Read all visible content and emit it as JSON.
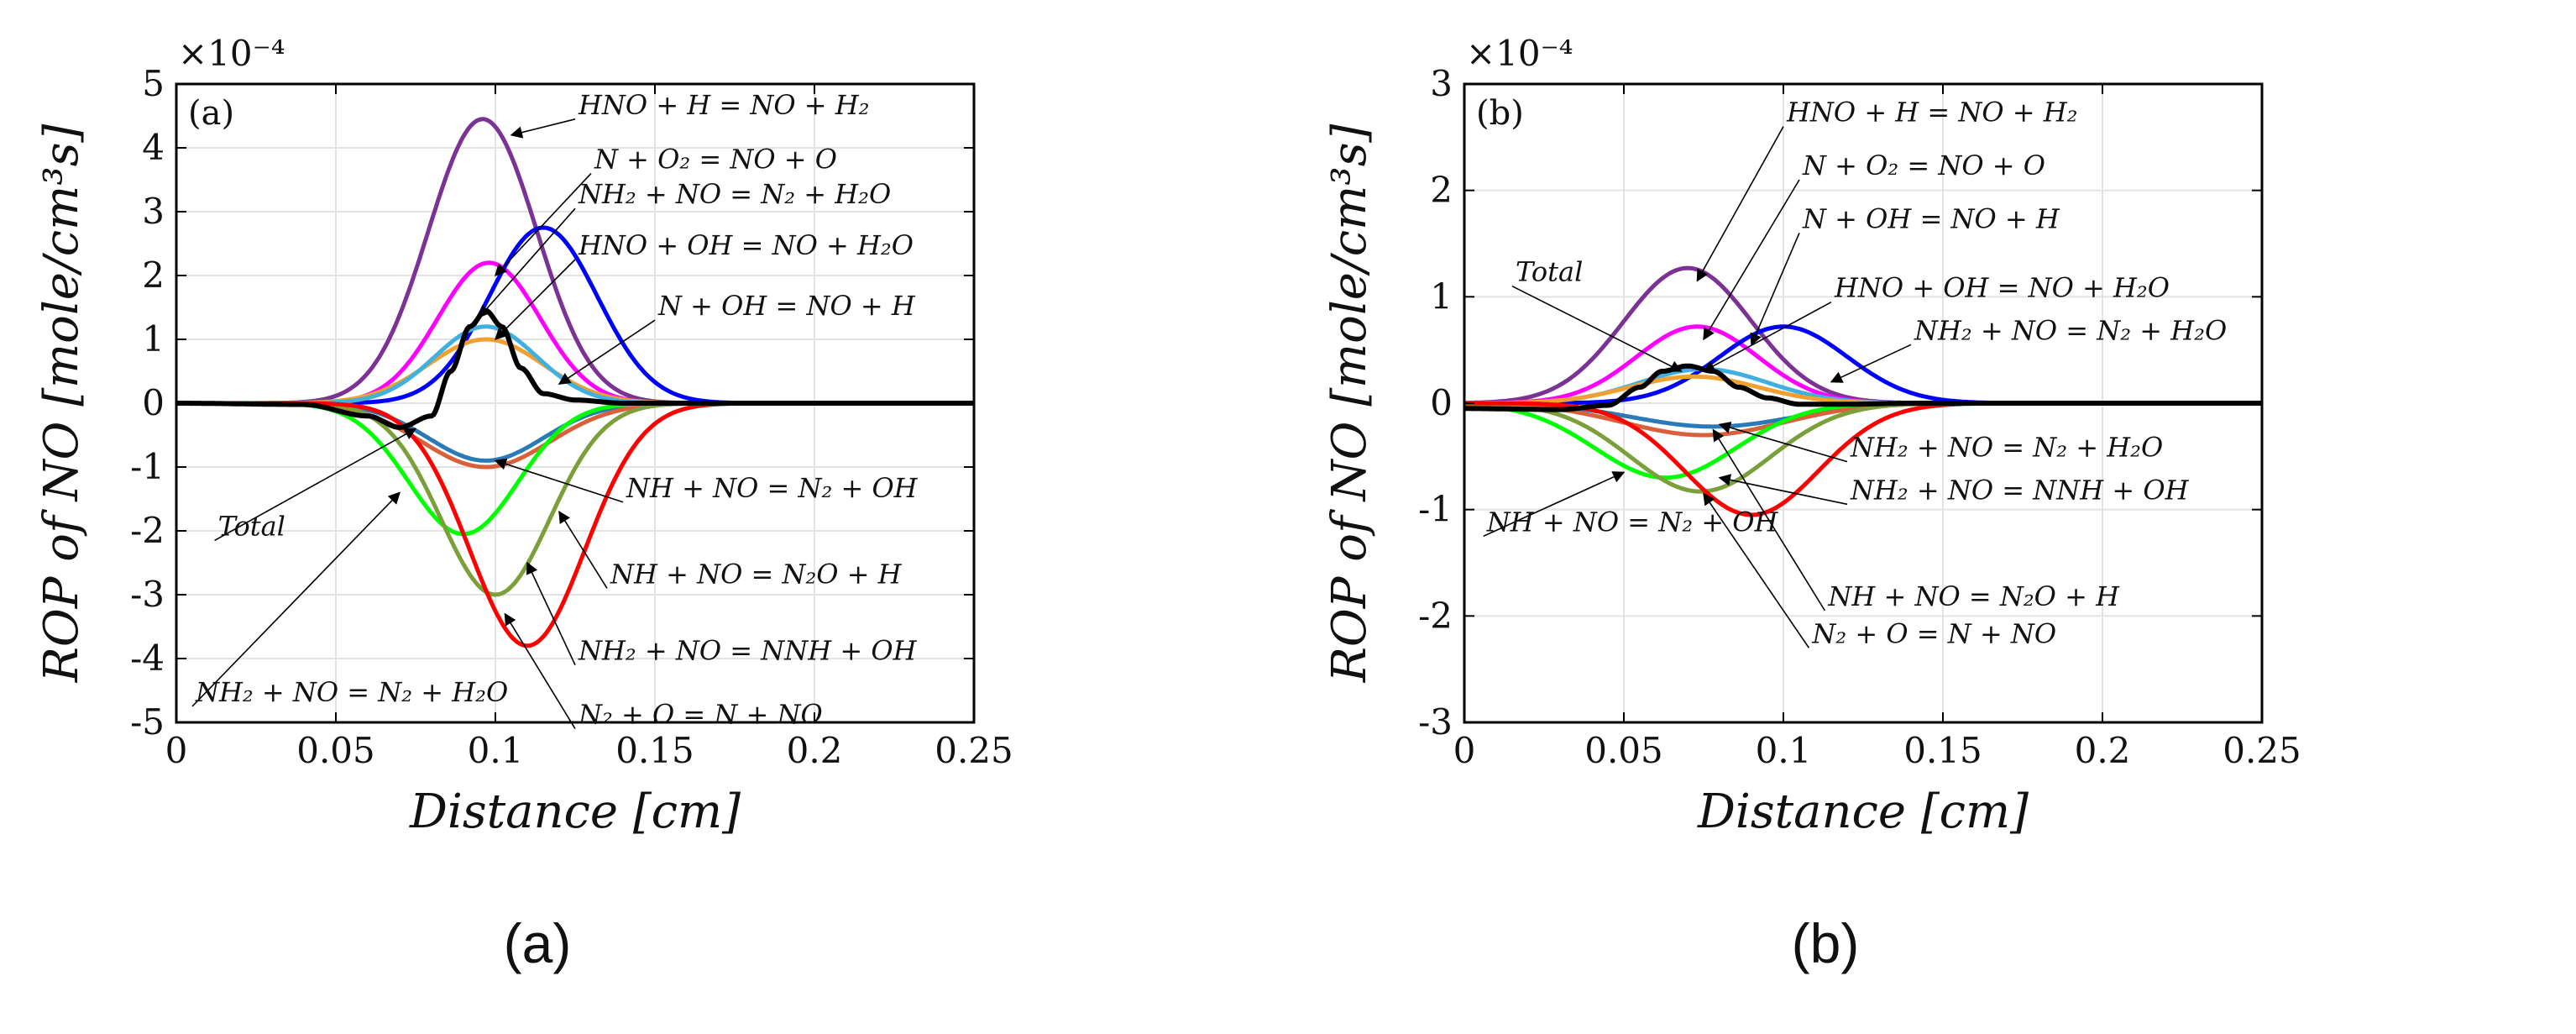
{
  "captions": [
    "(a)",
    "(b)"
  ],
  "chart_data": [
    {
      "type": "line",
      "panel_label": "(a)",
      "xlabel": "Distance [cm]",
      "ylabel": "ROP of NO [mole/cm³s]",
      "y_exponent": "×10⁻⁴",
      "xlim": [
        0,
        0.25
      ],
      "ylim": [
        -5,
        5
      ],
      "xticks": [
        "0",
        "0.05",
        "0.1",
        "0.15",
        "0.2",
        "0.25"
      ],
      "yticks": [
        "5",
        "4",
        "3",
        "2",
        "1",
        "0",
        "-1",
        "-2",
        "-3",
        "-4",
        "-5"
      ],
      "grid": true,
      "series": [
        {
          "color": "#7b3294",
          "peak_x": 0.096,
          "peak_y": 4.45,
          "width": 0.017
        },
        {
          "color": "#ff00ff",
          "peak_x": 0.098,
          "peak_y": 2.2,
          "width": 0.016
        },
        {
          "color": "#0000ff",
          "peak_x": 0.115,
          "peak_y": 2.75,
          "width": 0.017
        },
        {
          "color": "#f0a030",
          "peak_x": 0.097,
          "peak_y": 1.0,
          "width": 0.018
        },
        {
          "color": "#40b0e0",
          "peak_x": 0.097,
          "peak_y": 1.2,
          "width": 0.016
        },
        {
          "color": "#2a7ab8",
          "peak_x": 0.097,
          "peak_y": -0.9,
          "width": 0.018
        },
        {
          "color": "#d9603a",
          "peak_x": 0.097,
          "peak_y": -1.0,
          "width": 0.02
        },
        {
          "color": "#00ff00",
          "peak_x": 0.09,
          "peak_y": -2.05,
          "width": 0.017
        },
        {
          "color": "#7ba03a",
          "peak_x": 0.1,
          "peak_y": -3.0,
          "width": 0.017
        },
        {
          "color": "#ff0000",
          "peak_x": 0.11,
          "peak_y": -3.8,
          "width": 0.018
        },
        {
          "color": "#000000",
          "total": true,
          "x": [
            0,
            0.04,
            0.06,
            0.07,
            0.08,
            0.086,
            0.092,
            0.097,
            0.102,
            0.108,
            0.115,
            0.125,
            0.14,
            0.16,
            0.25
          ],
          "y": [
            0,
            -0.02,
            -0.2,
            -0.38,
            -0.2,
            0.5,
            1.2,
            1.45,
            1.2,
            0.55,
            0.15,
            0.05,
            0,
            0,
            0
          ]
        }
      ],
      "annotations": [
        {
          "text": "HNO + H = NO + H₂",
          "tx": 0.125,
          "ty": 4.45,
          "ax": 0.105,
          "ay": 4.2
        },
        {
          "text": "N + O₂ = NO + O",
          "tx": 0.13,
          "ty": 3.6,
          "ax": 0.1,
          "ay": 2.0
        },
        {
          "text": "NH₂ + NO = N₂ + H₂O",
          "tx": 0.125,
          "ty": 3.05,
          "ax": 0.095,
          "ay": 1.35
        },
        {
          "text": "HNO + OH = NO + H₂O",
          "tx": 0.125,
          "ty": 2.25,
          "ax": 0.1,
          "ay": 1.0
        },
        {
          "text": "N + OH = NO + H",
          "tx": 0.15,
          "ty": 1.3,
          "ax": 0.12,
          "ay": 0.3
        },
        {
          "text": "NH + NO = N₂ + OH",
          "tx": 0.14,
          "ty": -1.55,
          "ax": 0.1,
          "ay": -0.9
        },
        {
          "text": "NH + NO = N₂O + H",
          "tx": 0.135,
          "ty": -2.9,
          "ax": 0.12,
          "ay": -1.7
        },
        {
          "text": "NH₂ + NO = NNH + OH",
          "tx": 0.125,
          "ty": -4.1,
          "ax": 0.11,
          "ay": -2.5
        },
        {
          "text": "N₂ + O = N + NO",
          "tx": 0.125,
          "ty": -5.1,
          "ax": 0.103,
          "ay": -3.3
        },
        {
          "text": "NH₂ + NO = N₂ + H₂O",
          "tx": 0.005,
          "ty": -4.75,
          "ax": 0.07,
          "ay": -1.4
        },
        {
          "text": "Total",
          "tx": 0.012,
          "ty": -2.15,
          "ax": 0.075,
          "ay": -0.4
        }
      ]
    },
    {
      "type": "line",
      "panel_label": "(b)",
      "xlabel": "Distance [cm]",
      "ylabel": "ROP of NO [mole/cm³s]",
      "y_exponent": "×10⁻⁴",
      "xlim": [
        0,
        0.25
      ],
      "ylim": [
        -3,
        3
      ],
      "xticks": [
        "0",
        "0.05",
        "0.1",
        "0.15",
        "0.2",
        "0.25"
      ],
      "yticks": [
        "3",
        "2",
        "1",
        "0",
        "-1",
        "-2",
        "-3"
      ],
      "grid": true,
      "series": [
        {
          "color": "#7b3294",
          "peak_x": 0.07,
          "peak_y": 1.27,
          "width": 0.02
        },
        {
          "color": "#ff00ff",
          "peak_x": 0.073,
          "peak_y": 0.72,
          "width": 0.019
        },
        {
          "color": "#0000ff",
          "peak_x": 0.1,
          "peak_y": 0.72,
          "width": 0.02
        },
        {
          "color": "#40b0e0",
          "peak_x": 0.075,
          "peak_y": 0.32,
          "width": 0.02
        },
        {
          "color": "#f0a030",
          "peak_x": 0.072,
          "peak_y": 0.25,
          "width": 0.02
        },
        {
          "color": "#2a7ab8",
          "peak_x": 0.078,
          "peak_y": -0.22,
          "width": 0.025
        },
        {
          "color": "#d9603a",
          "peak_x": 0.075,
          "peak_y": -0.3,
          "width": 0.025
        },
        {
          "color": "#00ff00",
          "peak_x": 0.063,
          "peak_y": -0.7,
          "width": 0.022
        },
        {
          "color": "#7ba03a",
          "peak_x": 0.074,
          "peak_y": -0.83,
          "width": 0.022
        },
        {
          "color": "#ff0000",
          "peak_x": 0.09,
          "peak_y": -1.05,
          "width": 0.021
        },
        {
          "color": "#000000",
          "total": true,
          "x": [
            0,
            0.03,
            0.045,
            0.055,
            0.062,
            0.07,
            0.078,
            0.086,
            0.095,
            0.105,
            0.12,
            0.14,
            0.25
          ],
          "y": [
            -0.05,
            -0.06,
            -0.02,
            0.15,
            0.3,
            0.35,
            0.3,
            0.15,
            0.05,
            -0.01,
            -0.01,
            0,
            0
          ]
        }
      ],
      "annotations": [
        {
          "text": "HNO + H = NO + H₂",
          "tx": 0.1,
          "ty": 2.6,
          "ax": 0.073,
          "ay": 1.15
        },
        {
          "text": "N + O₂ = NO + O",
          "tx": 0.105,
          "ty": 2.1,
          "ax": 0.075,
          "ay": 0.6
        },
        {
          "text": "N + OH = NO + H",
          "tx": 0.105,
          "ty": 1.6,
          "ax": 0.09,
          "ay": 0.55
        },
        {
          "text": "HNO + OH = NO + H₂O",
          "tx": 0.115,
          "ty": 0.95,
          "ax": 0.075,
          "ay": 0.3
        },
        {
          "text": "NH₂ + NO = N₂ + H₂O",
          "tx": 0.14,
          "ty": 0.55,
          "ax": 0.115,
          "ay": 0.2
        },
        {
          "text": "Total",
          "tx": 0.015,
          "ty": 1.1,
          "ax": 0.068,
          "ay": 0.3
        },
        {
          "text": "NH₂ + NO = N₂ + H₂O",
          "tx": 0.12,
          "ty": -0.55,
          "ax": 0.08,
          "ay": -0.2
        },
        {
          "text": "NH₂ + NO = NNH + OH",
          "tx": 0.12,
          "ty": -0.95,
          "ax": 0.08,
          "ay": -0.7
        },
        {
          "text": "NH + NO = N₂ + OH",
          "tx": 0.006,
          "ty": -1.25,
          "ax": 0.05,
          "ay": -0.65
        },
        {
          "text": "NH + NO = N₂O + H",
          "tx": 0.113,
          "ty": -1.95,
          "ax": 0.078,
          "ay": -0.25
        },
        {
          "text": "N₂ + O = N + NO",
          "tx": 0.108,
          "ty": -2.3,
          "ax": 0.075,
          "ay": -0.85
        }
      ]
    }
  ]
}
